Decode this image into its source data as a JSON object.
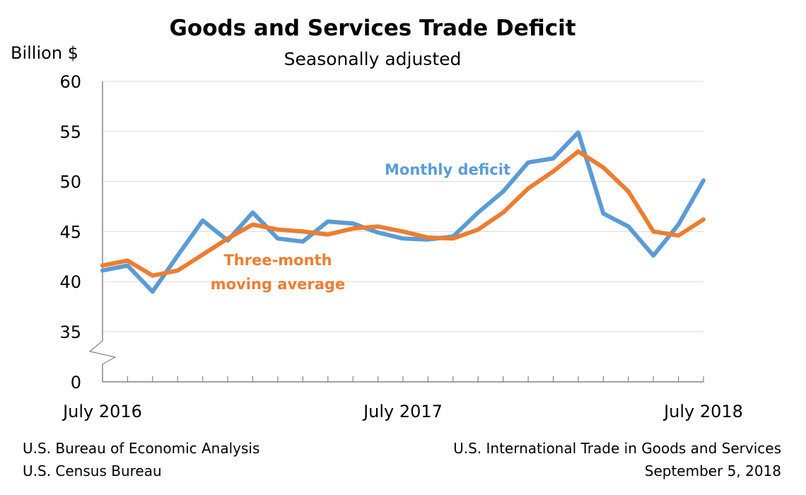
{
  "chart_data": {
    "type": "line",
    "title": "Goods and Services Trade Deficit",
    "subtitle": "Seasonally adjusted",
    "ylabel": "Billion $",
    "ylim": [
      35,
      60
    ],
    "yticks": [
      "60",
      "55",
      "50",
      "45",
      "40",
      "35",
      "0"
    ],
    "axis_break": true,
    "x_tick_labels": [
      "July 2016",
      "July 2017",
      "July 2018"
    ],
    "x": [
      "2016-07",
      "2016-08",
      "2016-09",
      "2016-10",
      "2016-11",
      "2016-12",
      "2017-01",
      "2017-02",
      "2017-03",
      "2017-04",
      "2017-05",
      "2017-06",
      "2017-07",
      "2017-08",
      "2017-09",
      "2017-10",
      "2017-11",
      "2017-12",
      "2018-01",
      "2018-02",
      "2018-03",
      "2018-04",
      "2018-05",
      "2018-06",
      "2018-07"
    ],
    "grid": true,
    "series": [
      {
        "name": "Monthly deficit",
        "color": "#5b9bd5",
        "values": [
          41.1,
          41.6,
          39.0,
          42.6,
          46.1,
          44.1,
          46.9,
          44.3,
          44.0,
          46.0,
          45.8,
          44.9,
          44.3,
          44.2,
          44.5,
          46.9,
          49.0,
          51.9,
          52.3,
          54.9,
          46.8,
          45.5,
          42.6,
          45.7,
          50.1
        ]
      },
      {
        "name": "Three-month moving average",
        "label_lines": [
          "Three-month",
          "moving average"
        ],
        "color": "#ed7d31",
        "values": [
          41.6,
          42.1,
          40.6,
          41.1,
          42.7,
          44.3,
          45.7,
          45.2,
          45.0,
          44.7,
          45.3,
          45.5,
          45.0,
          44.4,
          44.3,
          45.2,
          46.9,
          49.3,
          51.0,
          53.0,
          51.4,
          49.0,
          45.0,
          44.6,
          46.2
        ]
      }
    ]
  },
  "footer": {
    "left": [
      "U.S. Bureau of Economic Analysis",
      "U.S. Census Bureau"
    ],
    "right": [
      "U.S. International Trade in Goods and Services",
      "September 5, 2018"
    ]
  }
}
